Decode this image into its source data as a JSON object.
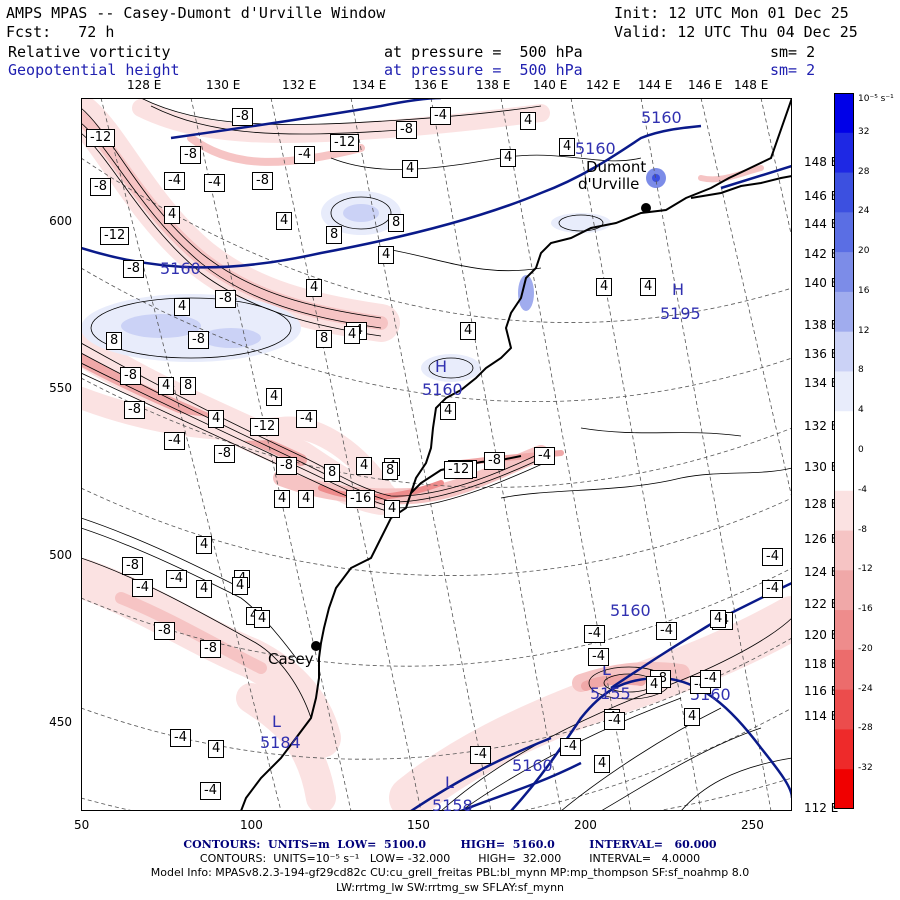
{
  "header": {
    "title": "AMPS MPAS -- Casey-Dumont d'Urville Window",
    "init": "Init: 12 UTC Mon 01 Dec 25",
    "fcst": "Fcst:   72 h",
    "valid": "Valid: 12 UTC Thu 04 Dec 25",
    "field1": "Relative vorticity",
    "field1_level": "at pressure =  500 hPa",
    "field1_sm": "sm= 2",
    "field2": "Geopotential height",
    "field2_level": "at pressure =  500 hPa",
    "field2_sm": "sm= 2"
  },
  "axes": {
    "top_lon": [
      "128 E",
      "130 E",
      "132 E",
      "134 E",
      "136 E",
      "138 E",
      "140 E",
      "142 E",
      "144 E",
      "146 E",
      "148 E"
    ],
    "right_lon": [
      "148 E",
      "146 E",
      "144 E",
      "142 E",
      "140 E",
      "138 E",
      "136 E",
      "134 E",
      "132 E",
      "130 E",
      "128 E",
      "126 E",
      "124 E",
      "122 E",
      "120 E",
      "118 E",
      "116 E",
      "114 E",
      "112 E"
    ],
    "y_ticks": [
      "600",
      "550",
      "500",
      "450"
    ],
    "x_ticks": [
      "50",
      "100",
      "150",
      "200",
      "250"
    ]
  },
  "places": {
    "dumont": "Dumont",
    "dumont2": "d'Urville",
    "casey": "Casey"
  },
  "height_labels": [
    "5160",
    "5160",
    "5160",
    "5160",
    "5160",
    "5160",
    "5155",
    "5158",
    "5195",
    "5184",
    "5160"
  ],
  "extrema": [
    "H",
    "H",
    "L",
    "L",
    "L",
    "L"
  ],
  "colorbar": {
    "unit": "10⁻⁵ s⁻¹",
    "labels": [
      "32",
      "28",
      "24",
      "20",
      "16",
      "12",
      "8",
      "4",
      "0",
      "-4",
      "-8",
      "-12",
      "-16",
      "-20",
      "-24",
      "-28",
      "-32"
    ],
    "colors": {
      "b32": "#0000e8",
      "b28": "#1e28e4",
      "b24": "#3c50e0",
      "b20": "#5a6ee4",
      "b16": "#7c8ce8",
      "b12": "#a0acee",
      "b8": "#cbd2f6",
      "b4": "#e8ecfb",
      "white": "#ffffff",
      "r4": "#fbe2e2",
      "r8": "#f6c4c4",
      "r12": "#f0a8a8",
      "r16": "#ee8c8c",
      "r20": "#ec6c6c",
      "r24": "#ec4c4c",
      "r28": "#ee2a2a",
      "r32": "#f00000"
    }
  },
  "footer": {
    "line1": "CONTOURS:  UNITS=m  LOW=  5100.0         HIGH=  5160.0         INTERVAL=   60.000",
    "line2": "CONTOURS:  UNITS=10⁻⁵ s⁻¹   LOW= -32.000        HIGH=  32.000        INTERVAL=   4.0000",
    "line3": "Model Info: MPASv8.2.3-194-gf29cd82c CU:cu_grell_freitas PBL:bl_mynn MP:mp_thompson SF:sf_noahmp 8.0",
    "line4": "LW:rrtmg_lw SW:rrtmg_sw SFLAY:sf_mynn"
  },
  "vort_labels": [
    "-12",
    "-8",
    "-8",
    "-4",
    "-8",
    "-12",
    "-8",
    "-4",
    "4",
    "4",
    "-4",
    "-8",
    "-4",
    "-12",
    "-8",
    "4",
    "4",
    "8",
    "4",
    "4",
    "8",
    "4",
    "4",
    "-8",
    "4",
    "-8",
    "-4",
    "4",
    "8",
    "4",
    "8",
    "4",
    "4",
    "8",
    "4",
    "4",
    "-8",
    "4",
    "8",
    "4",
    "-12",
    "-8",
    "4",
    "-4",
    "-12",
    "-8",
    "-4",
    "-8",
    "4",
    "8",
    "-12",
    "-8",
    "-4",
    "4",
    "4",
    "-16",
    "4",
    "4",
    "-4",
    "4",
    "4",
    "-8",
    "-4",
    "4",
    "4",
    "-8",
    "4",
    "-8",
    "-4",
    "-4",
    "-4",
    "-4",
    "4",
    "-4",
    "-8",
    "-4",
    "4",
    "-4",
    "4",
    "-4",
    "4",
    "-4",
    "-4",
    "-4",
    "-4",
    "4",
    "4",
    "-4"
  ]
}
